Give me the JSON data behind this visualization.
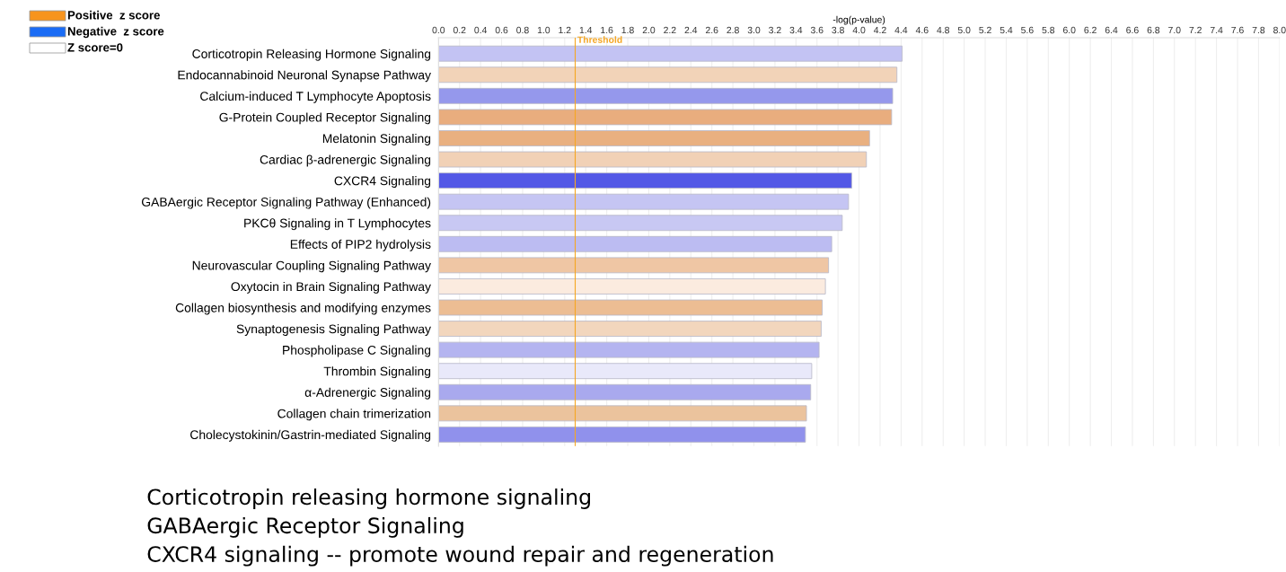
{
  "chart_data": {
    "type": "bar",
    "orientation": "horizontal",
    "xlabel": "-log(p-value)",
    "categories": [
      "Corticotropin Releasing Hormone Signaling",
      "Endocannabinoid Neuronal Synapse Pathway",
      "Calcium-induced T Lymphocyte Apoptosis",
      "G-Protein Coupled Receptor Signaling",
      "Melatonin Signaling",
      "Cardiac β-adrenergic Signaling",
      "CXCR4 Signaling",
      "GABAergic Receptor Signaling Pathway (Enhanced)",
      "PKCθ Signaling in T Lymphocytes",
      "Effects of PIP2 hydrolysis",
      "Neurovascular Coupling Signaling Pathway",
      "Oxytocin in Brain Signaling Pathway",
      "Collagen biosynthesis and modifying enzymes",
      "Synaptogenesis Signaling Pathway",
      "Phospholipase C Signaling",
      "Thrombin Signaling",
      "α-Adrenergic Signaling",
      "Collagen chain trimerization",
      "Cholecystokinin/Gastrin-mediated Signaling"
    ],
    "values": [
      4.41,
      4.36,
      4.32,
      4.31,
      4.1,
      4.07,
      3.93,
      3.9,
      3.84,
      3.74,
      3.71,
      3.68,
      3.65,
      3.64,
      3.62,
      3.55,
      3.54,
      3.5,
      3.49
    ],
    "colors": [
      "#c3c3f3",
      "#f2d3b8",
      "#9598ec",
      "#e9ad7e",
      "#e9b080",
      "#f1d1b6",
      "#5358e6",
      "#c5c5f3",
      "#c8c8f3",
      "#bcbcf2",
      "#efc6a4",
      "#fbebdf",
      "#ecbd93",
      "#f2d6bd",
      "#b4b4f0",
      "#e9e9fa",
      "#a9a9ee",
      "#ebc39d",
      "#9091ec"
    ],
    "xlim": [
      0,
      8.0
    ],
    "xticks": [
      {
        "value": 0,
        "label": "0.0"
      },
      0.2,
      0.4,
      0.6,
      0.8,
      {
        "value": 1,
        "label": "1.0"
      },
      1.2,
      1.4,
      1.6,
      1.8,
      {
        "value": 2,
        "label": "2.0"
      },
      2.2,
      2.4,
      2.6,
      2.8,
      {
        "value": 3,
        "label": "3.0"
      },
      3.2,
      3.4,
      3.6,
      3.8,
      {
        "value": 4,
        "label": "4.0"
      },
      4.2,
      4.4,
      4.6,
      4.8,
      {
        "value": 5,
        "label": "5.0"
      },
      5.2,
      5.4,
      5.6,
      5.8,
      {
        "value": 6,
        "label": "6.0"
      },
      6.2,
      6.4,
      6.6,
      6.8,
      {
        "value": 7,
        "label": "7.0"
      },
      7.2,
      7.4,
      7.6,
      7.8,
      {
        "value": 8,
        "label": "8.0"
      }
    ],
    "ref_lines": [
      {
        "axis": "x",
        "value": 1.3,
        "label": "Threshold",
        "color": "#f5a623"
      }
    ],
    "grid": "x",
    "annotations": [
      "Positive  z score",
      "Negative  z score",
      "Z score=0",
      "Corticotropin releasing hormone signaling",
      "GABAergic Receptor Signaling",
      "CXCR4 signaling -- promote wound repair and regeneration"
    ]
  }
}
